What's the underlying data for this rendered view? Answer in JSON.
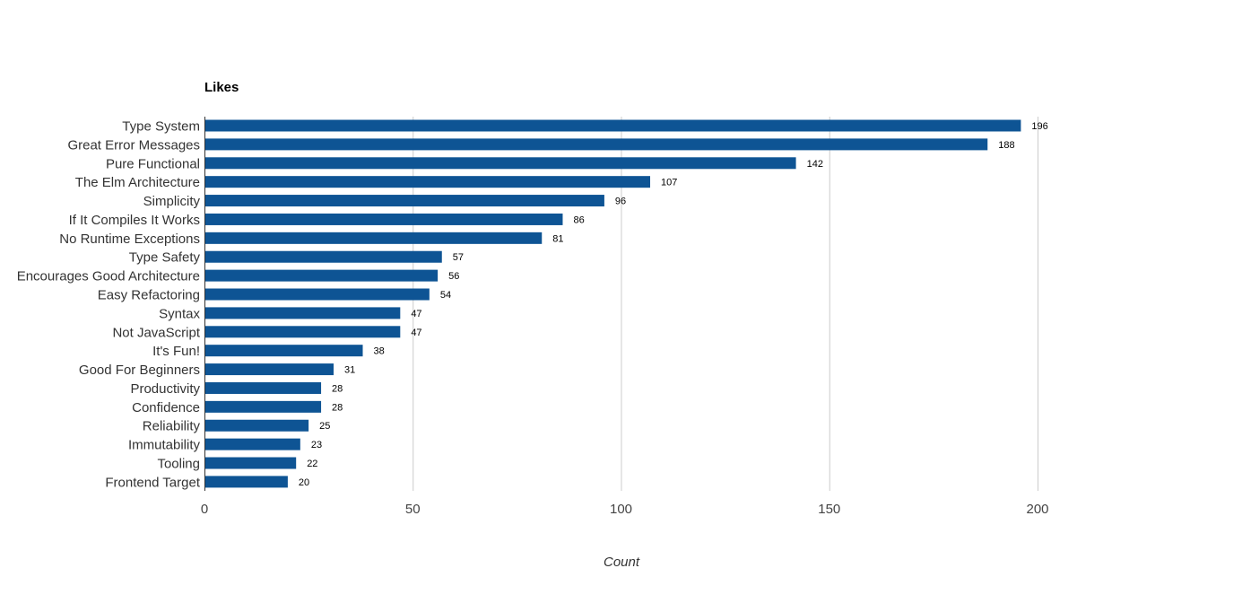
{
  "chart_data": {
    "type": "bar",
    "orientation": "horizontal",
    "title": "Likes",
    "xlabel": "Count",
    "ylabel": "",
    "xlim": [
      0,
      200
    ],
    "xticks": [
      0,
      50,
      100,
      150,
      200
    ],
    "grid": true,
    "bar_color": "#0e5494",
    "categories": [
      "Type System",
      "Great Error Messages",
      "Pure Functional",
      "The Elm Architecture",
      "Simplicity",
      "If It Compiles It Works",
      "No Runtime Exceptions",
      "Type Safety",
      "Encourages Good Architecture",
      "Easy Refactoring",
      "Syntax",
      "Not JavaScript",
      "It's Fun!",
      "Good For Beginners",
      "Productivity",
      "Confidence",
      "Reliability",
      "Immutability",
      "Tooling",
      "Frontend Target"
    ],
    "values": [
      196,
      188,
      142,
      107,
      96,
      86,
      81,
      57,
      56,
      54,
      47,
      47,
      38,
      31,
      28,
      28,
      25,
      23,
      22,
      20
    ]
  }
}
